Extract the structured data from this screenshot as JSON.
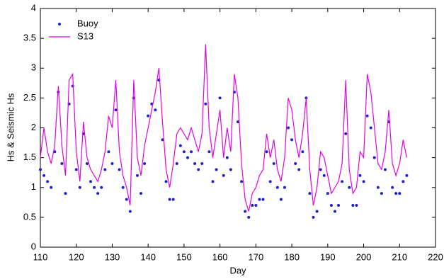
{
  "chart_data": {
    "type": "line",
    "xlabel": "Day",
    "ylabel": "Hs & Seismic Hs",
    "x": [
      110,
      111,
      112,
      113,
      114,
      115,
      116,
      117,
      118,
      119,
      120,
      121,
      122,
      123,
      124,
      125,
      126,
      127,
      128,
      129,
      130,
      131,
      132,
      133,
      134,
      135,
      136,
      137,
      138,
      139,
      140,
      141,
      142,
      143,
      144,
      145,
      146,
      147,
      148,
      149,
      150,
      151,
      152,
      153,
      154,
      155,
      156,
      157,
      158,
      159,
      160,
      161,
      162,
      163,
      164,
      165,
      166,
      167,
      168,
      169,
      170,
      171,
      172,
      173,
      174,
      175,
      176,
      177,
      178,
      179,
      180,
      181,
      182,
      183,
      184,
      185,
      186,
      187,
      188,
      189,
      190,
      191,
      192,
      193,
      194,
      195,
      196,
      197,
      198,
      199,
      200,
      201,
      202,
      203,
      204,
      205,
      206,
      207,
      208,
      209,
      210,
      211,
      212
    ],
    "series": [
      {
        "name": "Buoy",
        "style": "markers",
        "color": "#1f1fd0",
        "values": [
          1.3,
          1.2,
          1.1,
          1.0,
          1.6,
          2.6,
          1.4,
          0.9,
          2.4,
          2.7,
          1.3,
          1.0,
          1.9,
          1.4,
          1.1,
          1.0,
          0.9,
          1.0,
          1.3,
          1.6,
          1.4,
          2.3,
          1.3,
          1.0,
          0.8,
          0.6,
          2.5,
          1.2,
          0.9,
          1.4,
          2.2,
          2.4,
          2.3,
          2.8,
          1.8,
          1.1,
          0.8,
          0.8,
          1.4,
          1.7,
          1.6,
          1.5,
          1.6,
          1.4,
          1.3,
          1.4,
          2.4,
          1.6,
          1.1,
          1.3,
          2.5,
          1.2,
          1.5,
          1.3,
          2.6,
          2.1,
          1.1,
          0.6,
          0.5,
          0.7,
          0.7,
          0.8,
          0.8,
          1.6,
          1.1,
          1.4,
          1.0,
          0.8,
          1.0,
          2.0,
          1.8,
          1.4,
          1.3,
          1.6,
          2.5,
          0.9,
          0.5,
          0.6,
          1.3,
          1.2,
          0.9,
          0.7,
          0.6,
          0.7,
          1.1,
          1.9,
          1.0,
          0.7,
          0.7,
          1.2,
          1.1,
          2.2,
          2.0,
          1.5,
          1.0,
          0.9,
          1.3,
          2.1,
          1.0,
          0.9,
          0.9,
          1.1,
          1.2
        ]
      },
      {
        "name": "S13",
        "style": "line",
        "color": "#e600e6",
        "values": [
          1.5,
          2.0,
          1.6,
          1.4,
          1.7,
          2.7,
          1.7,
          1.2,
          2.8,
          2.9,
          1.6,
          1.1,
          2.1,
          1.5,
          1.3,
          1.2,
          1.1,
          1.3,
          1.6,
          2.2,
          2.0,
          2.8,
          1.6,
          1.2,
          1.0,
          0.7,
          2.8,
          1.5,
          1.2,
          1.7,
          2.0,
          2.3,
          2.6,
          3.0,
          2.1,
          1.3,
          1.0,
          1.4,
          1.9,
          2.0,
          1.9,
          1.8,
          2.0,
          1.8,
          1.6,
          1.9,
          3.4,
          2.0,
          1.5,
          1.9,
          2.3,
          1.5,
          2.0,
          1.6,
          2.9,
          2.5,
          1.4,
          0.8,
          0.6,
          0.9,
          1.0,
          1.2,
          1.3,
          1.9,
          1.5,
          1.8,
          1.3,
          1.1,
          1.5,
          2.5,
          2.3,
          1.8,
          1.5,
          1.9,
          2.5,
          1.3,
          0.7,
          1.0,
          1.6,
          1.5,
          1.2,
          0.9,
          1.0,
          1.1,
          1.4,
          2.8,
          1.3,
          0.9,
          1.0,
          1.6,
          1.5,
          2.9,
          2.6,
          2.0,
          1.4,
          1.3,
          1.6,
          2.3,
          1.4,
          1.2,
          1.4,
          1.8,
          1.5
        ]
      }
    ],
    "xlim": [
      110,
      220
    ],
    "xticks": [
      110,
      120,
      130,
      140,
      150,
      160,
      170,
      180,
      190,
      200,
      210,
      220
    ],
    "ylim": [
      0,
      4
    ],
    "yticks": [
      0,
      0.5,
      1,
      1.5,
      2,
      2.5,
      3,
      3.5,
      4
    ],
    "legend": "upper left"
  }
}
